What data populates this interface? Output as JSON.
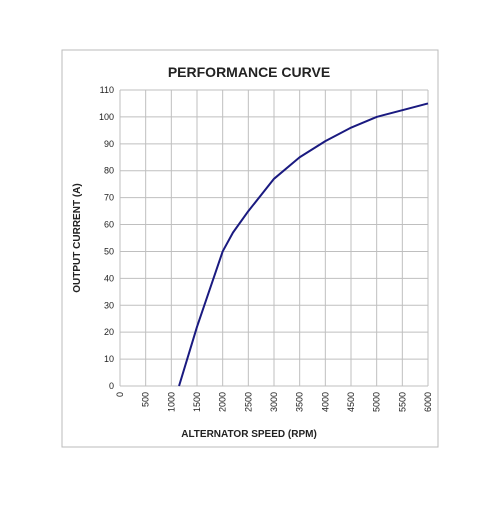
{
  "chart_data": {
    "type": "line",
    "title": "PERFORMANCE CURVE",
    "x_label": "ALTERNATOR SPEED (RPM)",
    "y_label": "OUTPUT CURRENT (A)",
    "x": [
      1150,
      1500,
      2000,
      2200,
      2500,
      3000,
      3500,
      4000,
      4500,
      5000,
      5500,
      6000
    ],
    "values": [
      0,
      22,
      50,
      57,
      65,
      77,
      85,
      91,
      96,
      100,
      102.5,
      105
    ],
    "color": "#1a1a80",
    "xlim": [
      0,
      6000
    ],
    "xticks": [
      0,
      500,
      1000,
      1500,
      2000,
      2500,
      3000,
      3500,
      4000,
      4500,
      5000,
      5500,
      6000
    ],
    "ylim": [
      0,
      110
    ],
    "yticks": [
      0,
      10,
      20,
      30,
      40,
      50,
      60,
      70,
      80,
      90,
      100,
      110
    ],
    "grid": true
  }
}
